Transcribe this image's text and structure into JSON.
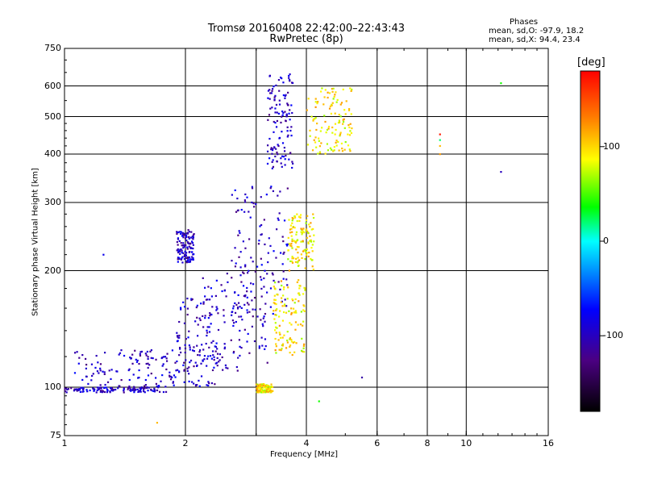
{
  "chart_data": {
    "type": "scatter",
    "title": "Tromsø 20160408 22:42:00–22:43:43",
    "subtitle": "RwPretec (8p)",
    "xlabel": "Frequency [MHz]",
    "ylabel": "Stationary phase Virtual Height [km]",
    "x_scale": "log",
    "y_scale": "log",
    "xlim": [
      1,
      16
    ],
    "ylim": [
      75,
      750
    ],
    "x_ticks": [
      1,
      2,
      4,
      6,
      8,
      10,
      16
    ],
    "x_tick_labels": [
      "1",
      "2",
      "4",
      "6",
      "8",
      "10",
      "16"
    ],
    "x_grid": [
      2,
      3,
      4,
      6,
      8,
      10
    ],
    "y_ticks": [
      75,
      100,
      200,
      300,
      400,
      500,
      600,
      750
    ],
    "y_tick_labels": [
      "75",
      "100",
      "200",
      "300",
      "400",
      "500",
      "600",
      "750"
    ],
    "y_grid": [
      100,
      200,
      300,
      400,
      500,
      600
    ],
    "grid": true,
    "legend": {
      "title": "Phases",
      "lines": [
        "mean, sd,O:  -97.9,  18.2",
        "mean, sd,X:   94.4,  23.4"
      ],
      "placement": "top-right"
    },
    "colorbar": {
      "label": "[deg]",
      "range": [
        -180,
        180
      ],
      "ticks": [
        100,
        0,
        -100
      ],
      "tick_labels": [
        "100",
        "0",
        "-100"
      ],
      "colors": [
        "#ff0000",
        "#ff8000",
        "#ffff00",
        "#00ff00",
        "#00ffff",
        "#0000ff",
        "#4b0082",
        "#000000"
      ]
    },
    "series": [
      {
        "name": "O-trace (blue)",
        "color_phase_deg": -98,
        "regions": [
          {
            "f": [
              1.0,
              1.8
            ],
            "h": [
              97,
              100
            ]
          },
          {
            "f": [
              1.05,
              1.9
            ],
            "h": [
              100,
              125
            ]
          },
          {
            "f": [
              1.9,
              2.4
            ],
            "h": [
              100,
              170
            ]
          },
          {
            "f": [
              2.2,
              3.2
            ],
            "h": [
              110,
              200
            ]
          },
          {
            "f": [
              2.6,
              3.6
            ],
            "h": [
              150,
              330
            ]
          },
          {
            "f": [
              3.2,
              3.7
            ],
            "h": [
              360,
              650
            ]
          },
          {
            "f": [
              1.9,
              2.1
            ],
            "h": [
              210,
              255
            ]
          }
        ]
      },
      {
        "name": "X-trace (yellow/orange)",
        "color_phase_deg": 94,
        "regions": [
          {
            "f": [
              3.0,
              3.3
            ],
            "h": [
              97,
              102
            ]
          },
          {
            "f": [
              3.3,
              4.0
            ],
            "h": [
              120,
              190
            ]
          },
          {
            "f": [
              3.6,
              4.2
            ],
            "h": [
              200,
              280
            ]
          },
          {
            "f": [
              4.0,
              5.2
            ],
            "h": [
              400,
              600
            ]
          }
        ]
      },
      {
        "name": "scattered",
        "points": [
          {
            "f": 8.6,
            "h": 450,
            "phase": 170
          },
          {
            "f": 8.6,
            "h": 435,
            "phase": 20
          },
          {
            "f": 8.6,
            "h": 420,
            "phase": 110
          },
          {
            "f": 8.6,
            "h": 400,
            "phase": 120
          },
          {
            "f": 12.2,
            "h": 610,
            "phase": 40
          },
          {
            "f": 12.2,
            "h": 360,
            "phase": -100
          },
          {
            "f": 1.25,
            "h": 220,
            "phase": -80
          },
          {
            "f": 1.7,
            "h": 81,
            "phase": 110
          },
          {
            "f": 4.3,
            "h": 92,
            "phase": 40
          },
          {
            "f": 5.5,
            "h": 106,
            "phase": -110
          }
        ]
      }
    ]
  }
}
